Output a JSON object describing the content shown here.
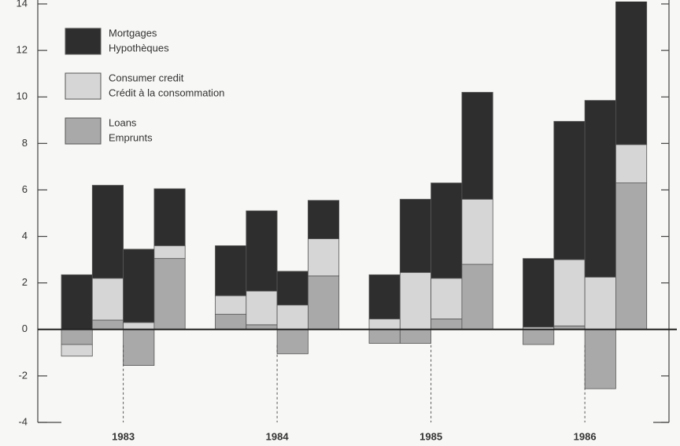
{
  "chart_data": {
    "type": "stacked_bar",
    "categories": [
      null,
      null,
      null,
      null,
      null,
      null,
      null,
      null,
      null,
      null,
      null,
      null,
      null,
      null,
      null,
      null
    ],
    "groups": [
      "1983",
      "1984",
      "1985",
      "1986"
    ],
    "series": [
      {
        "name": "Mortgages",
        "name_fr": "Hypothèques",
        "color": "#2e2e2e",
        "values": [
          2.35,
          4.0,
          3.15,
          2.45,
          2.15,
          3.45,
          1.45,
          1.65,
          1.9,
          3.15,
          4.1,
          4.6,
          2.95,
          5.95,
          7.6,
          6.3
        ]
      },
      {
        "name": "Consumer credit",
        "name_fr": "Crédit à la consommation",
        "color": "#d6d6d6",
        "values": [
          -0.5,
          1.8,
          0.3,
          0.55,
          0.8,
          1.45,
          1.05,
          1.6,
          0.45,
          2.45,
          1.75,
          2.8,
          0.1,
          2.85,
          2.25,
          1.65
        ]
      },
      {
        "name": "Loans",
        "name_fr": "Emprunts",
        "color": "#a9a9a9",
        "values": [
          -0.65,
          0.4,
          -1.55,
          3.05,
          0.65,
          0.2,
          -1.05,
          2.3,
          -0.6,
          -0.6,
          0.45,
          2.8,
          -0.65,
          0.15,
          -2.55,
          6.3
        ]
      }
    ],
    "ylim": [
      -4,
      14
    ],
    "yticks": [
      -4,
      -2,
      0,
      2,
      4,
      6,
      8,
      10,
      12,
      14
    ]
  }
}
